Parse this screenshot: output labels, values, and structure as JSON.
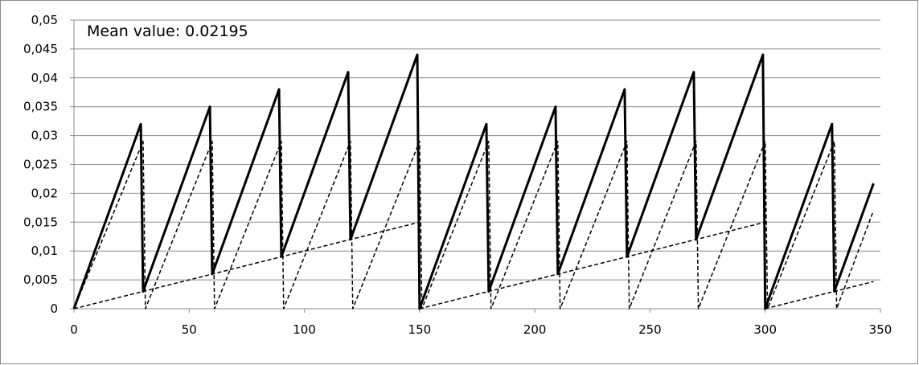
{
  "chart_data": {
    "type": "line",
    "annotation": "Mean value: 0.02195",
    "xlim": [
      0,
      350
    ],
    "xticks": [
      0,
      50,
      100,
      150,
      200,
      250,
      300,
      350
    ],
    "ylim": [
      0,
      0.05
    ],
    "yticks": [
      0,
      {
        "value": 0.005,
        "label": "0,005"
      },
      {
        "value": 0.01,
        "label": "0,01"
      },
      {
        "value": 0.015,
        "label": "0,015"
      },
      {
        "value": 0.02,
        "label": "0,02"
      },
      {
        "value": 0.025,
        "label": "0,025"
      },
      {
        "value": 0.03,
        "label": "0,03"
      },
      {
        "value": 0.035,
        "label": "0,035"
      },
      {
        "value": 0.04,
        "label": "0,04"
      },
      {
        "value": 0.045,
        "label": "0,045"
      },
      {
        "value": 0.05,
        "label": "0,05"
      }
    ],
    "grid": true,
    "series": [
      {
        "color": "#000000",
        "line_style": "solid",
        "line_width": 3,
        "x": [
          0,
          29,
          30,
          59,
          60,
          89,
          90,
          119,
          120,
          149,
          150,
          179,
          180,
          209,
          210,
          239,
          240,
          269,
          270,
          299,
          300,
          329,
          330,
          347
        ],
        "values": [
          0,
          0.032,
          0.003,
          0.035,
          0.006,
          0.038,
          0.009,
          0.041,
          0.012,
          0.044,
          0,
          0.032,
          0.003,
          0.035,
          0.006,
          0.038,
          0.009,
          0.041,
          0.012,
          0.044,
          0,
          0.032,
          0.003,
          0.0217
        ]
      },
      {
        "color": "#000000",
        "line_style": "dashed",
        "line_width": 1.5,
        "x": [
          0,
          30,
          31,
          60,
          61,
          90,
          91,
          120,
          121,
          150,
          151,
          180,
          181,
          210,
          211,
          240,
          241,
          270,
          271,
          300,
          301,
          330,
          331,
          347
        ],
        "values": [
          0,
          0.029,
          0,
          0.029,
          0,
          0.029,
          0,
          0.029,
          0,
          0.029,
          0,
          0.029,
          0,
          0.029,
          0,
          0.029,
          0,
          0.029,
          0,
          0.029,
          0,
          0.029,
          0,
          0.017
        ]
      },
      {
        "color": "#000000",
        "line_style": "dashed",
        "line_width": 1.5,
        "x": [
          0,
          150,
          150,
          150,
          300,
          300,
          300,
          347
        ],
        "values": [
          0,
          0.015,
          null,
          0,
          0.015,
          null,
          0,
          0.0047
        ]
      }
    ]
  }
}
